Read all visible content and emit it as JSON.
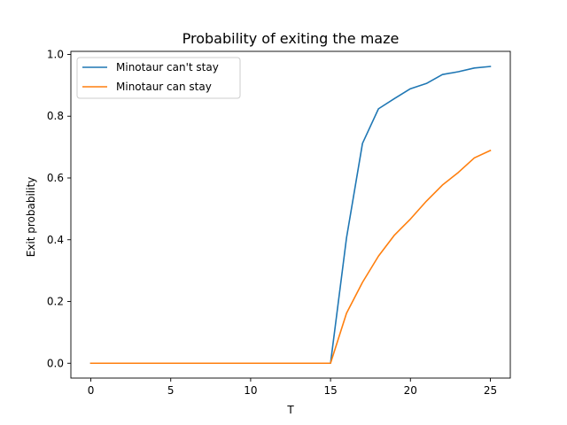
{
  "chart_data": {
    "type": "line",
    "title": "Probability of exiting the maze",
    "xlabel": "T",
    "ylabel": "Exit probability",
    "xlim": [
      -1.25,
      26.25
    ],
    "ylim": [
      -0.048,
      1.01
    ],
    "xticks": [
      0,
      5,
      10,
      15,
      20,
      25
    ],
    "xtick_labels": [
      "0",
      "5",
      "10",
      "15",
      "20",
      "25"
    ],
    "yticks": [
      0.0,
      0.2,
      0.4,
      0.6,
      0.8,
      1.0
    ],
    "ytick_labels": [
      "0.0",
      "0.2",
      "0.4",
      "0.6",
      "0.8",
      "1.0"
    ],
    "grid": false,
    "legend_position": "upper-left",
    "x": [
      0,
      1,
      2,
      3,
      4,
      5,
      6,
      7,
      8,
      9,
      10,
      11,
      12,
      13,
      14,
      15,
      16,
      17,
      18,
      19,
      20,
      21,
      22,
      23,
      24,
      25
    ],
    "series": [
      {
        "name": "Minotaur can't stay",
        "color": "#1f77b4",
        "values": [
          0,
          0,
          0,
          0,
          0,
          0,
          0,
          0,
          0,
          0,
          0,
          0,
          0,
          0,
          0,
          0,
          0.406,
          0.712,
          0.824,
          0.857,
          0.889,
          0.906,
          0.935,
          0.944,
          0.956,
          0.961
        ]
      },
      {
        "name": "Minotaur can stay",
        "color": "#ff7f0e",
        "values": [
          0,
          0,
          0,
          0,
          0,
          0,
          0,
          0,
          0,
          0,
          0,
          0,
          0,
          0,
          0,
          0,
          0.162,
          0.262,
          0.347,
          0.415,
          0.467,
          0.525,
          0.577,
          0.618,
          0.665,
          0.689
        ]
      }
    ]
  }
}
